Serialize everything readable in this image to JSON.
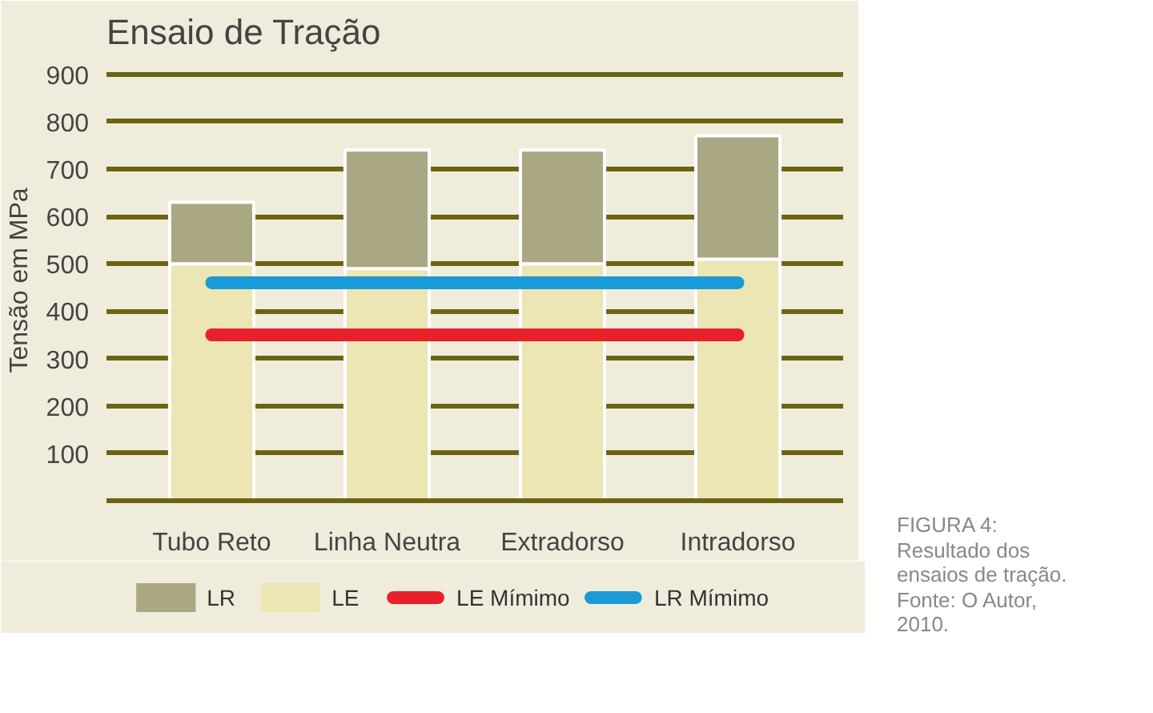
{
  "chart_data": {
    "type": "bar",
    "title": "Ensaio de Tração",
    "ylabel": "Tensão em MPa",
    "categories": [
      "Tubo Reto",
      "Linha Neutra",
      "Extradorso",
      "Intradorso"
    ],
    "stacked": true,
    "series": [
      {
        "name": "LE",
        "color": "#ece5b4",
        "values": [
          500,
          490,
          500,
          510
        ]
      },
      {
        "name": "LR",
        "color": "#aaa783",
        "values": [
          130,
          250,
          240,
          260
        ]
      },
      {
        "name": "LE Mímimo",
        "type": "line",
        "color": "#e8202a",
        "values": [
          350,
          350,
          350,
          350
        ]
      },
      {
        "name": "LR Mímimo",
        "type": "line",
        "color": "#1a9ad6",
        "values": [
          460,
          460,
          460,
          460
        ]
      }
    ],
    "ylim": [
      0,
      930
    ],
    "yticks": [
      100,
      200,
      300,
      400,
      500,
      600,
      700,
      800,
      900
    ],
    "grid": "y",
    "legend": "bottom",
    "annotations": [
      "FIGURA 4: Resultado dos ensaios de tração. Fonte: O Autor, 2010."
    ]
  }
}
